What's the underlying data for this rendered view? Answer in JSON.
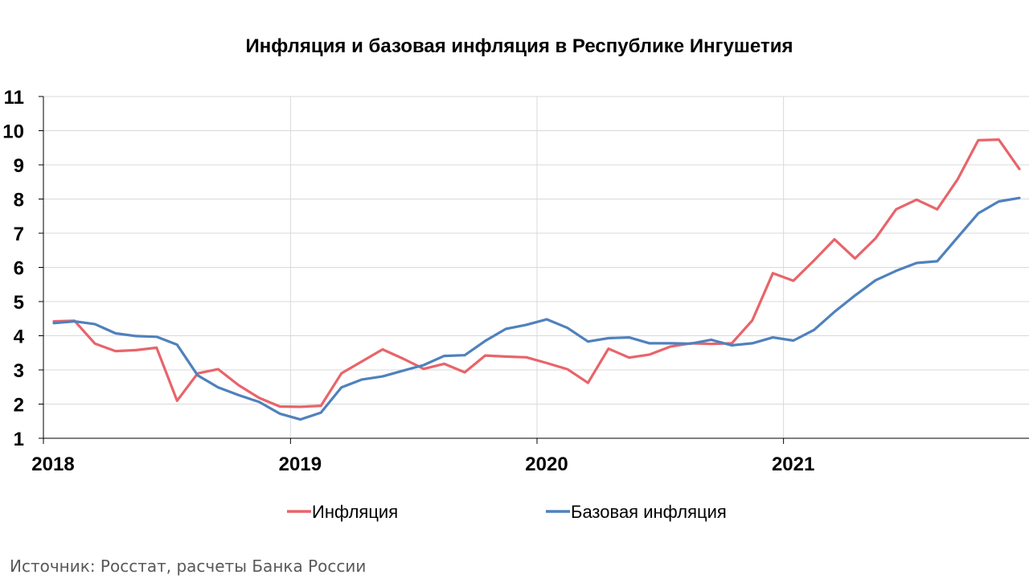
{
  "chart_data": {
    "type": "line",
    "title": "Инфляция и базовая инфляция в Республике Ингушетия",
    "source": "Источник: Росстат, расчеты Банка России",
    "xlabel": "",
    "ylabel": "",
    "ylim": [
      1,
      11
    ],
    "yticks": [
      "1",
      "2",
      "3",
      "4",
      "5",
      "6",
      "7",
      "8",
      "9",
      "10",
      "11"
    ],
    "xlim": [
      0,
      47
    ],
    "xticks": [
      {
        "label": "2018",
        "x": 0
      },
      {
        "label": "2019",
        "x": 12
      },
      {
        "label": "2020",
        "x": 24
      },
      {
        "label": "2021",
        "x": 36
      }
    ],
    "grid": true,
    "legend_position": "bottom",
    "series": [
      {
        "name": "Инфляция",
        "color": "#E8646A",
        "values": [
          4.42,
          4.44,
          3.77,
          3.55,
          3.58,
          3.65,
          2.1,
          2.9,
          3.02,
          2.55,
          2.18,
          1.93,
          1.92,
          1.95,
          2.9,
          3.25,
          3.6,
          3.33,
          3.03,
          3.18,
          2.93,
          3.42,
          3.39,
          3.37,
          3.2,
          3.02,
          2.62,
          3.62,
          3.36,
          3.45,
          3.68,
          3.78,
          3.76,
          3.78,
          4.45,
          5.83,
          5.61,
          6.2,
          6.82,
          6.26,
          6.85,
          7.7,
          7.98,
          7.7,
          8.58,
          9.72,
          9.74,
          8.88
        ]
      },
      {
        "name": "Базовая инфляция",
        "color": "#4F81BD",
        "values": [
          4.37,
          4.42,
          4.34,
          4.07,
          3.99,
          3.97,
          3.74,
          2.84,
          2.49,
          2.26,
          2.06,
          1.72,
          1.55,
          1.75,
          2.49,
          2.72,
          2.81,
          2.98,
          3.14,
          3.41,
          3.43,
          3.85,
          4.2,
          4.32,
          4.48,
          4.23,
          3.83,
          3.93,
          3.95,
          3.78,
          3.78,
          3.77,
          3.88,
          3.72,
          3.78,
          3.95,
          3.86,
          4.17,
          4.7,
          5.18,
          5.62,
          5.9,
          6.13,
          6.18,
          6.88,
          7.58,
          7.93,
          8.03
        ]
      }
    ]
  }
}
